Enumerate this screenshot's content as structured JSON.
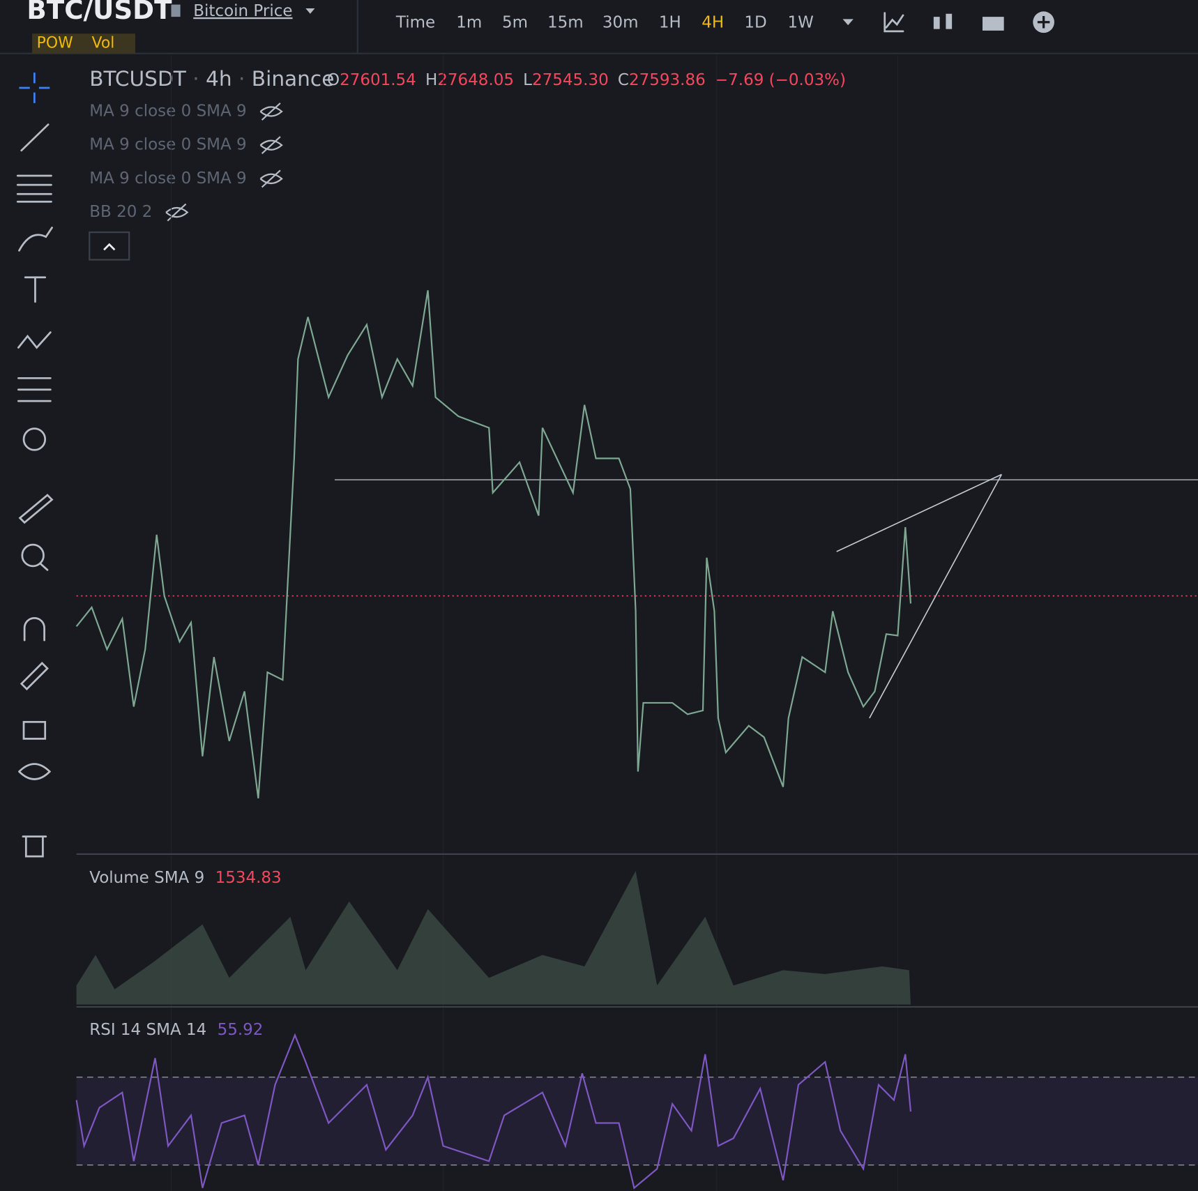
{
  "header": {
    "symbol": "BTC/USDT",
    "link": "Bitcoin Price",
    "tags": [
      "POW",
      "Vol"
    ],
    "timeframes": [
      "Time",
      "1m",
      "5m",
      "15m",
      "30m",
      "1H",
      "4H",
      "1D",
      "1W"
    ],
    "active_timeframe": "4H"
  },
  "legend": {
    "symbol": "BTCUSDT",
    "interval": "4h",
    "exchange": "Binance",
    "ohlc": [
      {
        "label": "O",
        "value": "27601.54"
      },
      {
        "label": "H",
        "value": "27648.05"
      },
      {
        "label": "L",
        "value": "27545.30"
      },
      {
        "label": "C",
        "value": "27593.86"
      }
    ],
    "change": "−7.69 (−0.03%)"
  },
  "indicators": [
    "MA 9 close 0 SMA 9",
    "MA 9 close 0 SMA 9",
    "MA 9 close 0 SMA 9",
    "BB 20 2"
  ],
  "volume": {
    "label": "Volume SMA 9",
    "value": "1534.83"
  },
  "rsi": {
    "label": "RSI 14 SMA 14",
    "value": "55.92"
  }
}
